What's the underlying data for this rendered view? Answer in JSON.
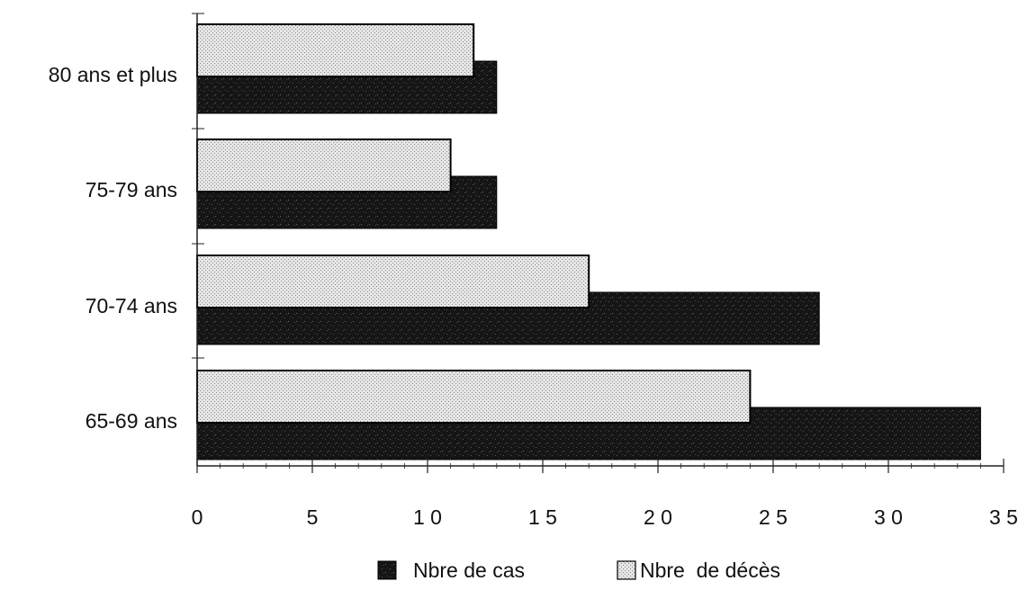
{
  "chart_data": {
    "type": "bar",
    "orientation": "horizontal",
    "categories": [
      "80 ans et plus",
      "75-79  ans",
      "70-74  ans",
      "65-69  ans"
    ],
    "series": [
      {
        "name": "Nbre de cas",
        "values": [
          13,
          13,
          27,
          34
        ]
      },
      {
        "name": "Nbre  de décès",
        "values": [
          12,
          11,
          17,
          24
        ]
      }
    ],
    "xlim": [
      0,
      35
    ],
    "xticks": [
      0,
      5,
      10,
      15,
      20,
      25,
      30,
      35
    ],
    "xtick_labels": [
      "0",
      "5",
      "1 0",
      "1 5",
      "2 0",
      "2 5",
      "3 0",
      "3 5"
    ],
    "title": "",
    "xlabel": "",
    "ylabel": "",
    "grid": false,
    "legend_position": "bottom",
    "colors": {
      "cas": "#1a1a1a",
      "deces": "#d9d9d9",
      "axis": "#222222"
    }
  }
}
